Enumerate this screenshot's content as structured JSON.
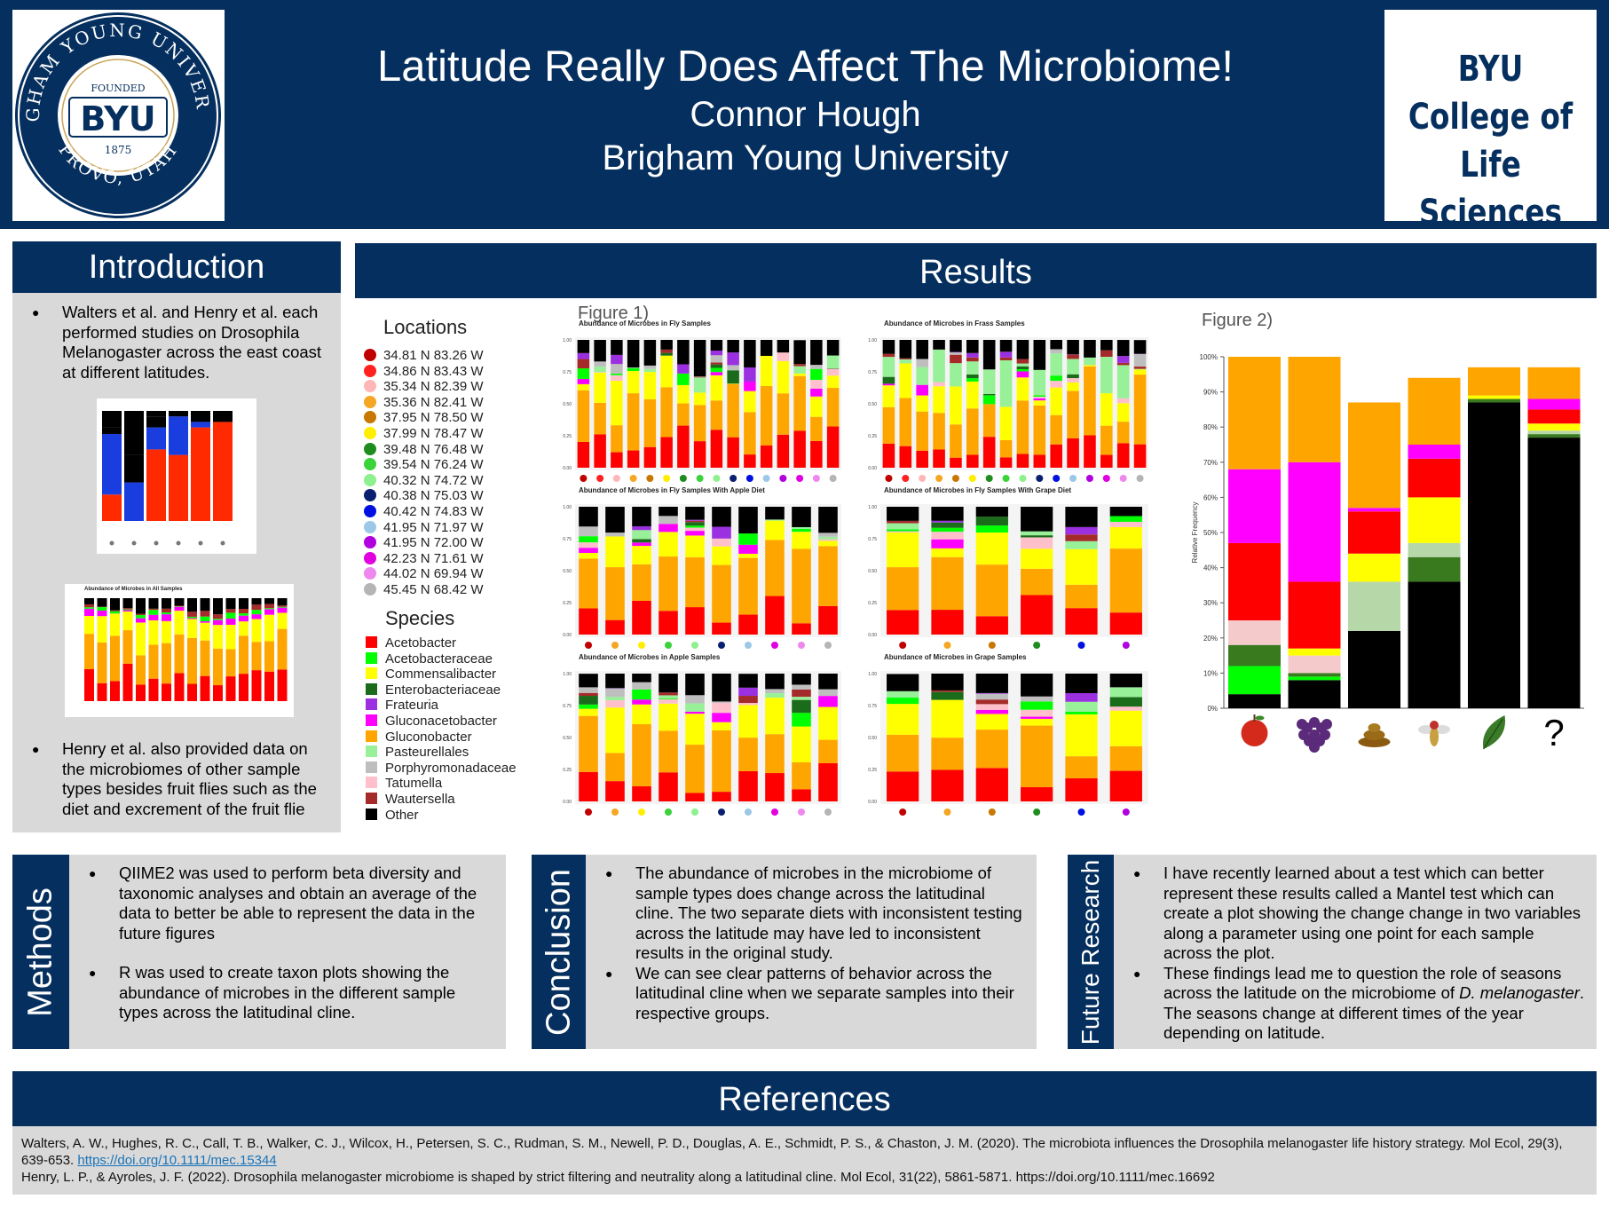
{
  "header": {
    "title": "Latitude Really Does Affect The Microbiome!",
    "author": "Connor Hough",
    "institution": "Brigham Young University",
    "left_logo": {
      "top_arc": "BRIGHAM YOUNG UNIVERSITY",
      "bottom_arc": "PROVO, UTAH",
      "founded": "FOUNDED",
      "center": "BYU",
      "year": "1875"
    },
    "right_logo": {
      "line1": "BYU",
      "line2": "College of",
      "line3": "Life Sciences"
    }
  },
  "introduction": {
    "heading": "Introduction",
    "bullet1": "Walters et al. and Henry et al. each performed studies on Drosophila Melanogaster across the east coast at different latitudes.",
    "bullet2": "Henry et al. also provided data on the microbiomes of other sample types besides fruit flies such as the diet and excrement of the fruit flie",
    "small_chart_title": "Abundance of Microbes in All Samples"
  },
  "results": {
    "heading": "Results",
    "figure1_label": "Figure 1)",
    "figure2_label": "Figure 2)",
    "locations_title": "Locations",
    "locations": [
      {
        "label": "34.81 N 83.26 W",
        "color": "#c00000"
      },
      {
        "label": "34.86 N 83.43 W",
        "color": "#ff2020"
      },
      {
        "label": "35.34 N 82.39 W",
        "color": "#ffb6b6"
      },
      {
        "label": "35.36 N 82.41 W",
        "color": "#f5a623"
      },
      {
        "label": "37.95 N 78.50 W",
        "color": "#c87800"
      },
      {
        "label": "37.99 N 78.47 W",
        "color": "#ffee00"
      },
      {
        "label": "39.48 N 76.48 W",
        "color": "#1e8c1e"
      },
      {
        "label": "39.54 N 76.24 W",
        "color": "#3ad33a"
      },
      {
        "label": "40.32 N 74.72 W",
        "color": "#8ef08e"
      },
      {
        "label": "40.38 N 75.03 W",
        "color": "#0a1f70"
      },
      {
        "label": "40.42 N 74.83 W",
        "color": "#0010e0"
      },
      {
        "label": "41.95 N 71.97 W",
        "color": "#9cc8e8"
      },
      {
        "label": "41.95 N 72.00 W",
        "color": "#b000e0"
      },
      {
        "label": "42.23 N 71.61 W",
        "color": "#e000e0"
      },
      {
        "label": "44.02 N 69.94 W",
        "color": "#ee88ee"
      },
      {
        "label": "45.45 N 68.42 W",
        "color": "#b5b5b5"
      }
    ],
    "species_title": "Species",
    "species": [
      {
        "label": "Acetobacter",
        "color": "#ff0000"
      },
      {
        "label": "Acetobacteraceae",
        "color": "#00ff00"
      },
      {
        "label": "Commensalibacter",
        "color": "#ffff00"
      },
      {
        "label": "Enterobacteriaceae",
        "color": "#1a6b1a"
      },
      {
        "label": "Frateuria",
        "color": "#9b30e0"
      },
      {
        "label": "Gluconacetobacter",
        "color": "#ff00ff"
      },
      {
        "label": "Gluconobacter",
        "color": "#ffa500"
      },
      {
        "label": "Pasteurellales",
        "color": "#98f098"
      },
      {
        "label": "Porphyromonadaceae",
        "color": "#bebebe"
      },
      {
        "label": "Tatumella",
        "color": "#ffc0cb"
      },
      {
        "label": "Wautersella",
        "color": "#a52a2a"
      },
      {
        "label": "Other",
        "color": "#000000"
      }
    ],
    "panel_titles": [
      "Abundance of Microbes in Fly Samples",
      "Abundance of Microbes in Frass Samples",
      "Abundance of Microbes in Fly Samples With Apple Diet",
      "Abundance of Microbes in Fly Samples With Grape Diet",
      "Abundance of Microbes in Apple Samples",
      "Abundance of Microbes in Grape Samples"
    ],
    "fig1_ticks": [
      "1.00",
      "0.75",
      "0.50",
      "0.25",
      "0.00"
    ],
    "fig2_ylabel": "Relative Frequency",
    "fig2_ticks": [
      "100%",
      "90%",
      "80%",
      "70%",
      "60%",
      "50%",
      "40%",
      "30%",
      "20%",
      "10%",
      "0%"
    ],
    "fig2_icons": [
      "apple-icon",
      "grapes-icon",
      "frass-icon",
      "fly-icon",
      "leaf-icon",
      "question-icon"
    ],
    "fig2_question": "?"
  },
  "chart_data": [
    {
      "type": "bar",
      "title": "",
      "ylabel": "Relative Frequency",
      "ylim": [
        0,
        100
      ],
      "stacked": true,
      "categories": [
        "apple-icon",
        "grapes-icon",
        "frass-icon",
        "fly-icon",
        "leaf-icon",
        "question-icon"
      ],
      "series": [
        {
          "name": "Other",
          "color": "#000000",
          "values": [
            4,
            8,
            22,
            36,
            87,
            77
          ]
        },
        {
          "name": "Acetobacteraceae",
          "color": "#00ff00",
          "values": [
            8,
            1,
            0,
            0,
            0,
            0
          ]
        },
        {
          "name": "Enterobacteriaceae",
          "color": "#3a7a1f",
          "values": [
            6,
            1,
            0,
            7,
            1,
            1
          ]
        },
        {
          "name": "Tatumella",
          "color": "#f4caca",
          "values": [
            7,
            5,
            0,
            0,
            0,
            0
          ]
        },
        {
          "name": "Pasteurellales",
          "color": "#b6d7a8",
          "values": [
            0,
            0,
            14,
            4,
            0,
            1
          ]
        },
        {
          "name": "Commensalibacter",
          "color": "#ffff00",
          "values": [
            0,
            2,
            8,
            13,
            1,
            2
          ]
        },
        {
          "name": "Acetobacter",
          "color": "#ff0000",
          "values": [
            22,
            19,
            12,
            11,
            0,
            4
          ]
        },
        {
          "name": "Gluconacetobacter",
          "color": "#ff00ff",
          "values": [
            21,
            34,
            1,
            4,
            0,
            3
          ]
        },
        {
          "name": "Gluconobacter",
          "color": "#ffa500",
          "values": [
            32,
            30,
            30,
            19,
            8,
            9
          ]
        }
      ]
    }
  ],
  "methods": {
    "heading": "Methods",
    "bullet1": "QIIME2 was used to perform beta diversity and taxonomic analyses and obtain an average of the data to better be able to represent the data in the future figures",
    "bullet2": "R was used to create taxon plots showing the abundance of microbes in the different sample types across the latitudinal cline."
  },
  "conclusion": {
    "heading": "Conclusion",
    "bullet1": "The abundance of microbes in the microbiome of sample types does change across the latitudinal cline. The two separate diets with inconsistent testing across the latitude may have led to inconsistent results in the original study.",
    "bullet2": "We can see clear patterns of behavior across the latitudinal cline when we separate samples into their respective groups."
  },
  "future": {
    "heading": "Future Research",
    "bullet1": "I have recently learned about a test which can better represent these results called a Mantel test which can create a plot showing the change change in two variables along a parameter using one point for each sample across the plot.",
    "bullet2_a": "These findings lead me to question the role of seasons across the latitude on the microbiome of ",
    "bullet2_em": "D. melanogaster",
    "bullet2_b": ". The seasons change at different times of the year depending on latitude."
  },
  "references": {
    "heading": "References",
    "ref1": "Walters, A. W., Hughes, R. C., Call, T. B., Walker, C. J., Wilcox, H., Petersen, S. C., Rudman, S. M., Newell, P. D., Douglas, A. E., Schmidt, P. S., & Chaston, J. M. (2020). The microbiota influences the Drosophila melanogaster life history strategy. Mol Ecol, 29(3), 639-653. ",
    "ref1_link": "https://doi.org/10.1111/mec.15344",
    "ref2": "Henry, L. P., & Ayroles, J. F. (2022). Drosophila melanogaster microbiome is shaped by strict filtering and neutrality along a latitudinal cline. Mol Ecol, 31(22), 5861-5871. https://doi.org/10.1111/mec.16692"
  }
}
